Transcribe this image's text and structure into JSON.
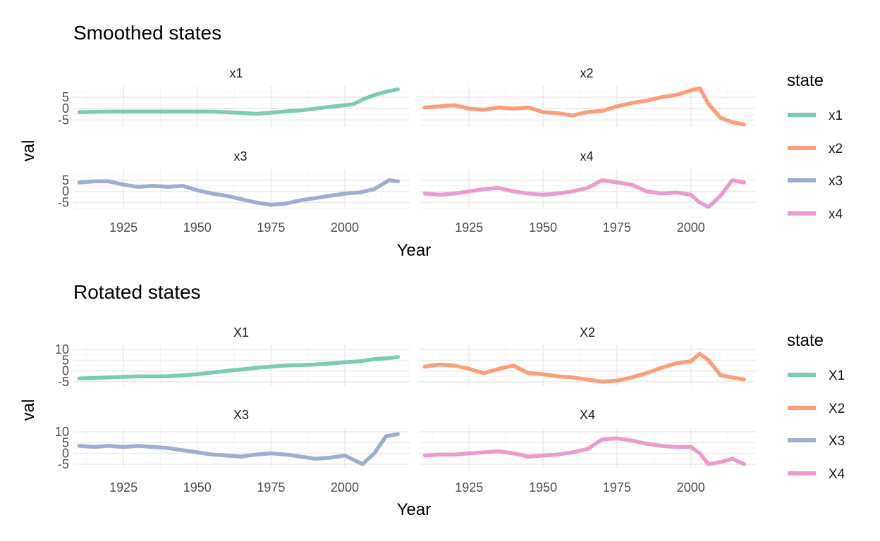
{
  "chart_data": [
    {
      "type": "line",
      "title": "Smoothed states",
      "xlabel": "Year",
      "ylabel": "val",
      "facet_layout": "2x2",
      "shared_x_ticks": [
        1925,
        1950,
        1975,
        2000
      ],
      "xlim": [
        1908,
        2022
      ],
      "ylim": [
        -8,
        10
      ],
      "y_ticks": [
        -5,
        0,
        5
      ],
      "grid": true,
      "legend": {
        "title": "state",
        "position": "right",
        "entries": [
          "x1",
          "x2",
          "x3",
          "x4"
        ]
      },
      "series": [
        {
          "name": "x1",
          "color": "#66C2A5",
          "x": [
            1910,
            1920,
            1930,
            1940,
            1950,
            1955,
            1960,
            1965,
            1970,
            1975,
            1980,
            1985,
            1990,
            1995,
            2000,
            2003,
            2006,
            2010,
            2014,
            2018
          ],
          "y": [
            -1.5,
            -1.3,
            -1.3,
            -1.3,
            -1.3,
            -1.3,
            -1.6,
            -1.9,
            -2.3,
            -1.8,
            -1.2,
            -0.8,
            0.0,
            0.8,
            1.5,
            2.0,
            4.0,
            6.0,
            7.5,
            8.5
          ]
        },
        {
          "name": "x2",
          "color": "#FC8D62",
          "x": [
            1910,
            1915,
            1920,
            1925,
            1930,
            1935,
            1940,
            1945,
            1950,
            1955,
            1960,
            1965,
            1970,
            1975,
            1980,
            1985,
            1990,
            1995,
            2000,
            2003,
            2006,
            2010,
            2014,
            2018
          ],
          "y": [
            0.5,
            1.0,
            1.5,
            0.0,
            -0.5,
            0.5,
            0.0,
            0.5,
            -1.5,
            -2.0,
            -3.0,
            -1.5,
            -1.0,
            1.0,
            2.5,
            3.5,
            5.0,
            6.0,
            8.0,
            9.0,
            2.0,
            -4.0,
            -6.0,
            -7.0
          ]
        },
        {
          "name": "x3",
          "color": "#8DA0CB",
          "x": [
            1910,
            1915,
            1920,
            1925,
            1930,
            1935,
            1940,
            1945,
            1950,
            1955,
            1960,
            1965,
            1970,
            1975,
            1980,
            1985,
            1990,
            1995,
            2000,
            2005,
            2010,
            2015,
            2018
          ],
          "y": [
            4.0,
            4.5,
            4.5,
            3.0,
            2.0,
            2.5,
            2.0,
            2.5,
            0.5,
            -1.0,
            -2.0,
            -3.5,
            -5.0,
            -6.0,
            -5.5,
            -4.0,
            -3.0,
            -2.0,
            -1.0,
            -0.5,
            1.0,
            5.0,
            4.5
          ]
        },
        {
          "name": "x4",
          "color": "#E78AC3",
          "x": [
            1910,
            1915,
            1920,
            1925,
            1930,
            1935,
            1940,
            1945,
            1950,
            1955,
            1960,
            1965,
            1970,
            1975,
            1980,
            1985,
            1990,
            1995,
            2000,
            2003,
            2006,
            2010,
            2014,
            2018
          ],
          "y": [
            -1.0,
            -1.5,
            -1.0,
            0.0,
            1.0,
            1.5,
            0.0,
            -1.0,
            -1.5,
            -1.0,
            0.0,
            1.5,
            5.0,
            4.0,
            3.0,
            0.0,
            -1.0,
            -0.5,
            -1.5,
            -5.0,
            -7.0,
            -2.0,
            5.0,
            4.0
          ]
        }
      ]
    },
    {
      "type": "line",
      "title": "Rotated states",
      "xlabel": "Year",
      "ylabel": "val",
      "facet_layout": "2x2",
      "shared_x_ticks": [
        1925,
        1950,
        1975,
        2000
      ],
      "xlim": [
        1908,
        2022
      ],
      "ylim": [
        -7,
        12
      ],
      "y_ticks": [
        -5,
        0,
        5,
        10
      ],
      "grid": true,
      "legend": {
        "title": "state",
        "position": "right",
        "entries": [
          "X1",
          "X2",
          "X3",
          "X4"
        ]
      },
      "series": [
        {
          "name": "X1",
          "color": "#66C2A5",
          "x": [
            1910,
            1920,
            1930,
            1940,
            1950,
            1960,
            1970,
            1980,
            1990,
            2000,
            2005,
            2010,
            2015,
            2018
          ],
          "y": [
            -3.5,
            -3.0,
            -2.5,
            -2.5,
            -1.5,
            0.0,
            1.5,
            2.5,
            3.0,
            4.0,
            4.5,
            5.5,
            6.0,
            6.5
          ]
        },
        {
          "name": "X2",
          "color": "#FC8D62",
          "x": [
            1910,
            1915,
            1920,
            1925,
            1930,
            1935,
            1940,
            1945,
            1950,
            1955,
            1960,
            1965,
            1970,
            1975,
            1980,
            1985,
            1990,
            1995,
            2000,
            2003,
            2006,
            2010,
            2014,
            2018
          ],
          "y": [
            2.0,
            3.0,
            2.5,
            1.0,
            -1.0,
            1.0,
            2.5,
            -1.0,
            -1.5,
            -2.5,
            -3.0,
            -4.0,
            -5.0,
            -4.5,
            -3.0,
            -1.0,
            1.5,
            3.5,
            4.5,
            8.0,
            5.0,
            -2.0,
            -3.0,
            -4.0
          ]
        },
        {
          "name": "X3",
          "color": "#8DA0CB",
          "x": [
            1910,
            1915,
            1920,
            1925,
            1930,
            1935,
            1940,
            1945,
            1950,
            1955,
            1960,
            1965,
            1970,
            1975,
            1980,
            1985,
            1990,
            1995,
            2000,
            2003,
            2006,
            2010,
            2014,
            2018
          ],
          "y": [
            3.5,
            3.0,
            3.5,
            3.0,
            3.5,
            3.0,
            2.5,
            1.5,
            0.5,
            -0.5,
            -1.0,
            -1.5,
            -0.5,
            0.0,
            -0.5,
            -1.5,
            -2.5,
            -2.0,
            -1.0,
            -3.0,
            -5.0,
            0.0,
            8.0,
            9.0
          ]
        },
        {
          "name": "X4",
          "color": "#E78AC3",
          "x": [
            1910,
            1915,
            1920,
            1925,
            1930,
            1935,
            1940,
            1945,
            1950,
            1955,
            1960,
            1965,
            1970,
            1975,
            1980,
            1985,
            1990,
            1995,
            2000,
            2003,
            2006,
            2010,
            2014,
            2018
          ],
          "y": [
            -1.0,
            -0.5,
            -0.5,
            0.0,
            0.5,
            1.0,
            0.0,
            -1.5,
            -1.0,
            -0.5,
            0.5,
            2.0,
            6.5,
            7.0,
            6.0,
            4.5,
            3.5,
            3.0,
            3.0,
            0.0,
            -5.0,
            -4.0,
            -2.5,
            -5.0
          ]
        }
      ]
    }
  ]
}
